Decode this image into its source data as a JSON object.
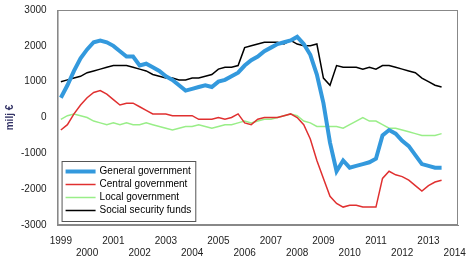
{
  "chart_data": {
    "type": "line",
    "y_label": "milj €",
    "categories": [
      1999,
      null,
      null,
      null,
      2000,
      null,
      null,
      null,
      2001,
      null,
      null,
      null,
      2002,
      null,
      null,
      null,
      2003,
      null,
      null,
      null,
      2004,
      null,
      null,
      null,
      2005,
      null,
      null,
      null,
      2006,
      null,
      null,
      null,
      2007,
      null,
      null,
      null,
      2008,
      null,
      null,
      null,
      2009,
      null,
      null,
      null,
      2010,
      null,
      null,
      null,
      2011,
      null,
      null,
      null,
      2012,
      null,
      null,
      null,
      2013,
      null,
      null,
      null,
      2014
    ],
    "series": [
      {
        "name": "General government",
        "color": "#3399dd",
        "values": [
          550,
          900,
          1300,
          1650,
          1900,
          2100,
          2150,
          2100,
          2000,
          1850,
          1700,
          1700,
          1450,
          1500,
          1400,
          1300,
          1150,
          1050,
          900,
          750,
          800,
          850,
          900,
          850,
          1000,
          1050,
          1150,
          1250,
          1450,
          1600,
          1700,
          1850,
          1950,
          2050,
          2100,
          2150,
          2250,
          2050,
          1750,
          1200,
          400,
          -700,
          -1500,
          -1200,
          -1400,
          -1350,
          -1300,
          -1250,
          -1150,
          -500,
          -350,
          -450,
          -650,
          -800,
          -1050,
          -1300,
          -1350,
          -1400,
          -1400,
          null,
          null
        ]
      },
      {
        "name": "Central government",
        "color": "#e03030",
        "values": [
          -350,
          -200,
          100,
          350,
          550,
          700,
          750,
          650,
          500,
          350,
          400,
          400,
          300,
          200,
          100,
          100,
          100,
          50,
          50,
          50,
          50,
          -50,
          -50,
          -50,
          0,
          -50,
          0,
          100,
          -150,
          -200,
          -50,
          0,
          0,
          0,
          50,
          100,
          0,
          -200,
          -600,
          -1200,
          -1700,
          -2200,
          -2400,
          -2500,
          -2450,
          -2450,
          -2500,
          -2500,
          -2500,
          -1700,
          -1500,
          -1600,
          -1650,
          -1750,
          -1900,
          -2050,
          -1900,
          -1800,
          -1750,
          null,
          null
        ]
      },
      {
        "name": "Local government",
        "color": "#99ee88",
        "values": [
          -50,
          50,
          100,
          50,
          0,
          -100,
          -150,
          -200,
          -150,
          -200,
          -150,
          -200,
          -200,
          -150,
          -200,
          -250,
          -300,
          -350,
          -300,
          -250,
          -250,
          -200,
          -250,
          -300,
          -250,
          -200,
          -200,
          -150,
          -100,
          -150,
          -100,
          -50,
          -50,
          0,
          50,
          100,
          50,
          -100,
          -150,
          -250,
          -250,
          -250,
          -250,
          -300,
          -200,
          -100,
          0,
          -100,
          -100,
          -200,
          -300,
          -300,
          -350,
          -400,
          -450,
          -500,
          -500,
          -500,
          -450,
          null,
          null
        ]
      },
      {
        "name": "Social security funds",
        "color": "#000000",
        "values": [
          1000,
          1050,
          1100,
          1150,
          1250,
          1300,
          1350,
          1400,
          1450,
          1450,
          1450,
          1400,
          1350,
          1300,
          1200,
          1150,
          1100,
          1100,
          1050,
          1050,
          1100,
          1100,
          1150,
          1200,
          1350,
          1400,
          1400,
          1450,
          1950,
          2000,
          2050,
          2100,
          2100,
          2100,
          2050,
          2150,
          2050,
          2000,
          2000,
          2050,
          1100,
          900,
          1450,
          1400,
          1400,
          1400,
          1350,
          1400,
          1350,
          1450,
          1450,
          1400,
          1350,
          1300,
          1250,
          1100,
          1000,
          900,
          850,
          null,
          null
        ]
      }
    ],
    "ylim": [
      -3000,
      3000
    ],
    "yticks": [
      -3000,
      -2000,
      -1000,
      0,
      1000,
      2000,
      3000
    ],
    "grid": false,
    "legend": "lower left"
  }
}
